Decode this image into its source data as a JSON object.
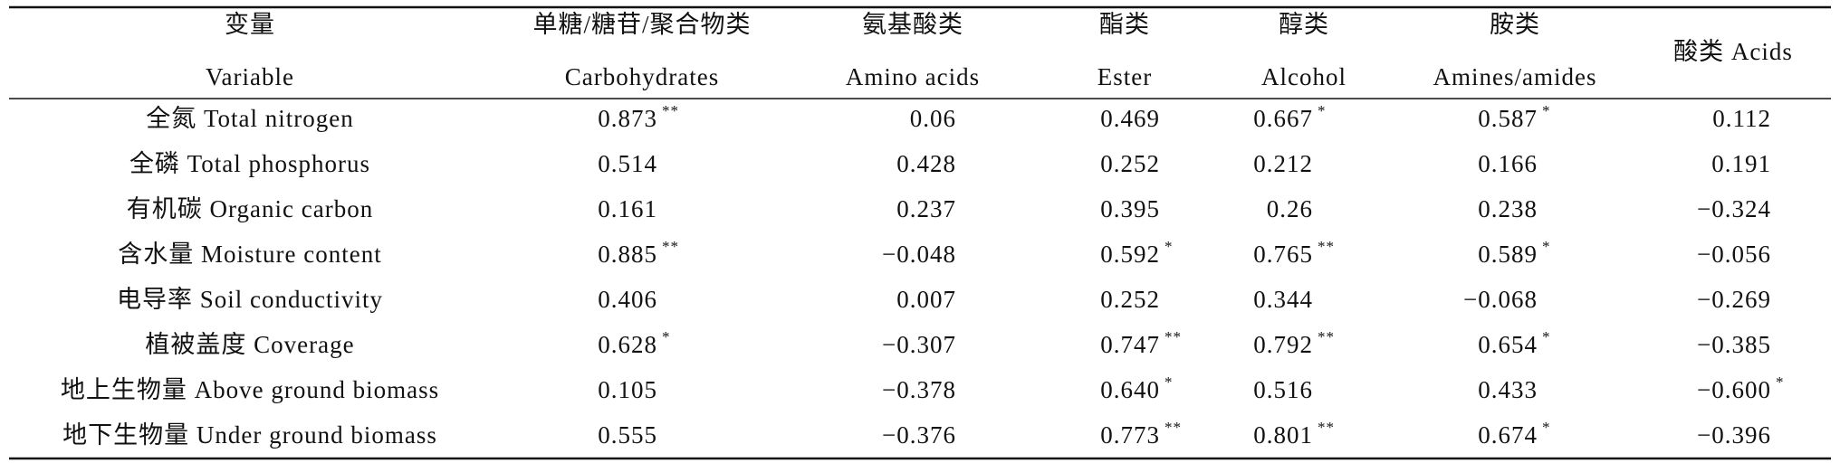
{
  "table": {
    "header": [
      {
        "zh": "变量",
        "en": "Variable"
      },
      {
        "zh": "单糖/糖苷/聚合物类",
        "en": "Carbohydrates"
      },
      {
        "zh": "氨基酸类",
        "en": "Amino acids"
      },
      {
        "zh": "酯类",
        "en": "Ester"
      },
      {
        "zh": "醇类",
        "en": "Alcohol"
      },
      {
        "zh": "胺类",
        "en": "Amines/amides"
      },
      {
        "text": "酸类 Acids"
      }
    ],
    "rows": [
      {
        "variable": "全氮 Total nitrogen",
        "cells": [
          {
            "value": "0.873",
            "sig": "**"
          },
          {
            "value": "0.06"
          },
          {
            "value": "0.469"
          },
          {
            "value": "0.667",
            "sig": "*"
          },
          {
            "value": "0.587",
            "sig": "*"
          },
          {
            "value": "0.112"
          }
        ]
      },
      {
        "variable": "全磷 Total phosphorus",
        "cells": [
          {
            "value": "0.514"
          },
          {
            "value": "0.428"
          },
          {
            "value": "0.252"
          },
          {
            "value": "0.212"
          },
          {
            "value": "0.166"
          },
          {
            "value": "0.191"
          }
        ]
      },
      {
        "variable": "有机碳 Organic carbon",
        "cells": [
          {
            "value": "0.161"
          },
          {
            "value": "0.237"
          },
          {
            "value": "0.395"
          },
          {
            "value": "0.26"
          },
          {
            "value": "0.238"
          },
          {
            "value": "−0.324"
          }
        ]
      },
      {
        "variable": "含水量 Moisture content",
        "cells": [
          {
            "value": "0.885",
            "sig": "**"
          },
          {
            "value": "−0.048"
          },
          {
            "value": "0.592",
            "sig": "*"
          },
          {
            "value": "0.765",
            "sig": "**"
          },
          {
            "value": "0.589",
            "sig": "*"
          },
          {
            "value": "−0.056"
          }
        ]
      },
      {
        "variable": "电导率 Soil conductivity",
        "cells": [
          {
            "value": "0.406"
          },
          {
            "value": "0.007"
          },
          {
            "value": "0.252"
          },
          {
            "value": "0.344"
          },
          {
            "value": "−0.068"
          },
          {
            "value": "−0.269"
          }
        ]
      },
      {
        "variable": "植被盖度 Coverage",
        "cells": [
          {
            "value": "0.628",
            "sig": "*"
          },
          {
            "value": "−0.307"
          },
          {
            "value": "0.747",
            "sig": "**"
          },
          {
            "value": "0.792",
            "sig": "**"
          },
          {
            "value": "0.654",
            "sig": "*"
          },
          {
            "value": "−0.385"
          }
        ]
      },
      {
        "variable": "地上生物量 Above ground biomass",
        "cells": [
          {
            "value": "0.105"
          },
          {
            "value": "−0.378"
          },
          {
            "value": "0.640",
            "sig": "*"
          },
          {
            "value": "0.516"
          },
          {
            "value": "0.433"
          },
          {
            "value": "−0.600",
            "sig": "*"
          }
        ]
      },
      {
        "variable": "地下生物量 Under ground biomass",
        "cells": [
          {
            "value": "0.555"
          },
          {
            "value": "−0.376"
          },
          {
            "value": "0.773",
            "sig": "**"
          },
          {
            "value": "0.801",
            "sig": "**"
          },
          {
            "value": "0.674",
            "sig": "*"
          },
          {
            "value": "−0.396"
          }
        ]
      }
    ]
  }
}
